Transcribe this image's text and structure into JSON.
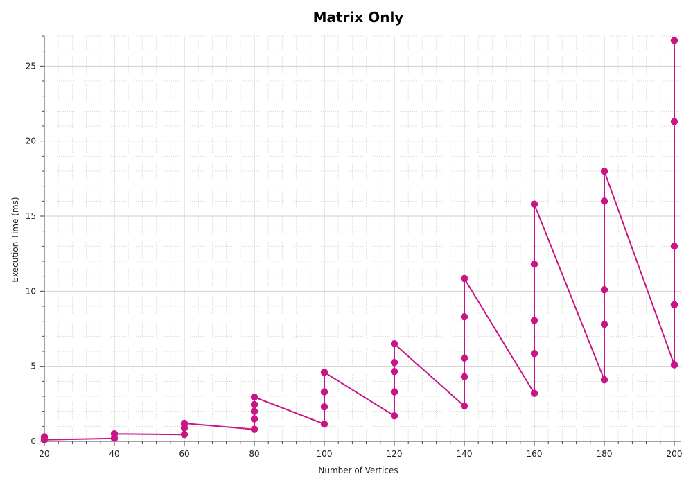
{
  "chart_data": {
    "type": "line",
    "title": "Matrix Only",
    "xlabel": "Number of Vertices",
    "ylabel": "Execution Time (ms)",
    "xlim": [
      20,
      200
    ],
    "ylim": [
      0,
      27
    ],
    "xticks": [
      20,
      40,
      60,
      80,
      100,
      120,
      140,
      160,
      180,
      200
    ],
    "yticks": [
      0,
      5,
      10,
      15,
      20,
      25
    ],
    "grid": true,
    "series": [
      {
        "color": "#c71585",
        "x": [
          20,
          20,
          40,
          40,
          60,
          60,
          60,
          60,
          80,
          80,
          80,
          80,
          80,
          100,
          100,
          100,
          100,
          120,
          120,
          120,
          120,
          120,
          140,
          140,
          140,
          140,
          140,
          160,
          160,
          160,
          160,
          160,
          180,
          180,
          180,
          180,
          180,
          200,
          200,
          200,
          200,
          200
        ],
        "y": [
          0.3,
          0.1,
          0.2,
          0.5,
          0.45,
          0.9,
          1.15,
          1.2,
          0.8,
          1.5,
          2.0,
          2.45,
          2.95,
          1.15,
          2.3,
          3.3,
          4.6,
          1.7,
          3.3,
          4.65,
          5.25,
          6.5,
          2.35,
          4.3,
          5.55,
          8.3,
          10.85,
          3.2,
          5.85,
          8.05,
          11.8,
          15.8,
          4.1,
          7.8,
          10.1,
          16.0,
          18.0,
          5.1,
          9.1,
          13.0,
          21.3,
          26.7
        ]
      }
    ]
  }
}
